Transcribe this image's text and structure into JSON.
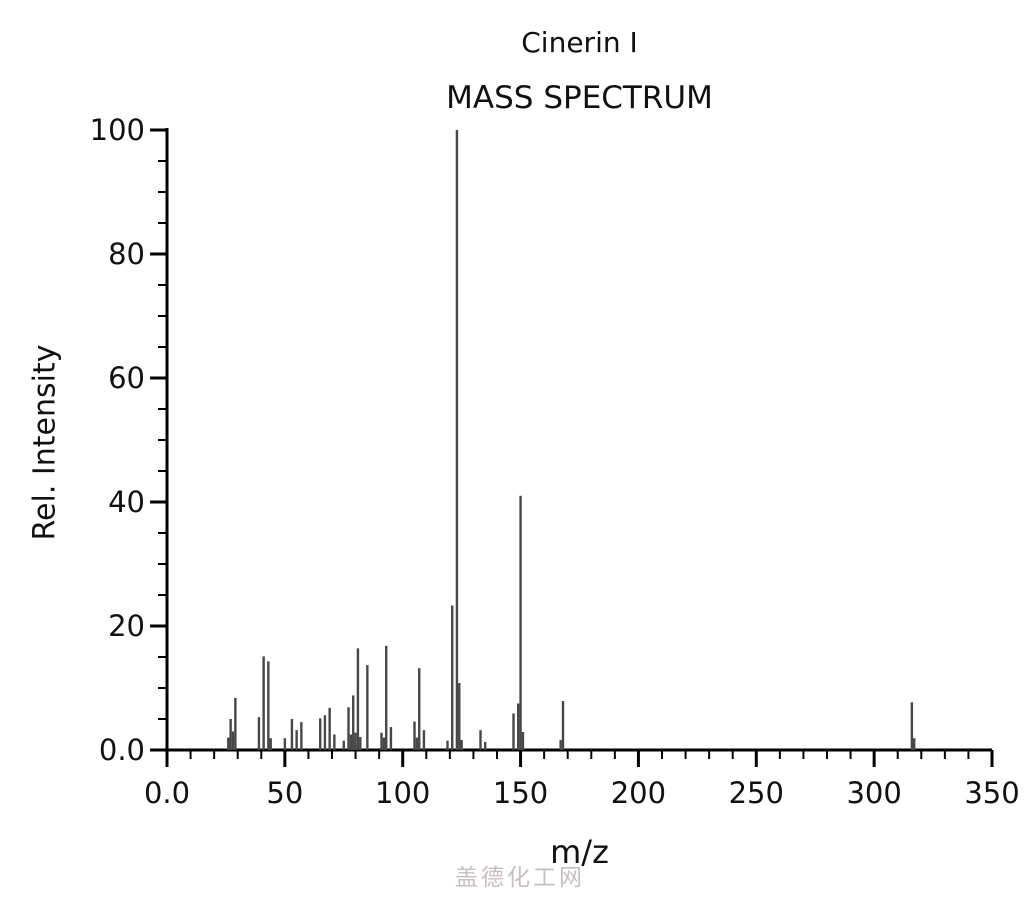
{
  "watermark": {
    "text": "盖德化工网"
  },
  "colors": {
    "background": "#ffffff",
    "axis": "#000000",
    "bar": "#474747",
    "tick_label": "#111111",
    "watermark": "#c6bfbf"
  },
  "chart_data": {
    "type": "bar",
    "title": "Cinerin I",
    "subtitle": "MASS SPECTRUM",
    "xlabel": "m/z",
    "ylabel": "Rel. Intensity",
    "xlim": [
      0,
      350
    ],
    "ylim": [
      0,
      100
    ],
    "grid": false,
    "legend": "none",
    "x_major_ticks": [
      0,
      50,
      100,
      150,
      200,
      250,
      300,
      350
    ],
    "x_tick_labels": [
      "0.0",
      "50",
      "100",
      "150",
      "200",
      "250",
      "300",
      "350"
    ],
    "x_minor_step": 10,
    "y_major_ticks": [
      0,
      20,
      40,
      60,
      80,
      100
    ],
    "y_tick_labels": [
      "0.0",
      "20",
      "40",
      "60",
      "80",
      "100"
    ],
    "y_minor_step": 5,
    "peaks": [
      [
        26,
        2.0
      ],
      [
        27,
        5.0
      ],
      [
        28,
        3.0
      ],
      [
        29,
        8.4
      ],
      [
        39,
        5.3
      ],
      [
        41,
        15.1
      ],
      [
        43,
        14.3
      ],
      [
        44,
        1.9
      ],
      [
        50,
        1.9
      ],
      [
        53,
        5.0
      ],
      [
        55,
        3.2
      ],
      [
        57,
        4.5
      ],
      [
        65,
        5.1
      ],
      [
        67,
        5.6
      ],
      [
        69,
        6.8
      ],
      [
        71,
        2.5
      ],
      [
        75,
        1.5
      ],
      [
        77,
        6.9
      ],
      [
        78,
        2.5
      ],
      [
        79,
        8.8
      ],
      [
        80,
        2.8
      ],
      [
        81,
        16.4
      ],
      [
        82,
        2.1
      ],
      [
        85,
        13.7
      ],
      [
        91,
        2.8
      ],
      [
        92,
        2.0
      ],
      [
        93,
        16.8
      ],
      [
        95,
        3.7
      ],
      [
        105,
        4.6
      ],
      [
        106,
        2.0
      ],
      [
        107,
        13.2
      ],
      [
        109,
        3.2
      ],
      [
        119,
        1.5
      ],
      [
        121,
        23.3
      ],
      [
        123,
        100.0
      ],
      [
        124,
        10.8
      ],
      [
        125,
        1.6
      ],
      [
        133,
        3.2
      ],
      [
        135,
        1.3
      ],
      [
        147,
        5.9
      ],
      [
        149,
        7.5
      ],
      [
        150,
        41.0
      ],
      [
        151,
        2.9
      ],
      [
        167,
        1.6
      ],
      [
        168,
        7.9
      ],
      [
        316,
        7.7
      ],
      [
        317,
        1.9
      ]
    ]
  }
}
